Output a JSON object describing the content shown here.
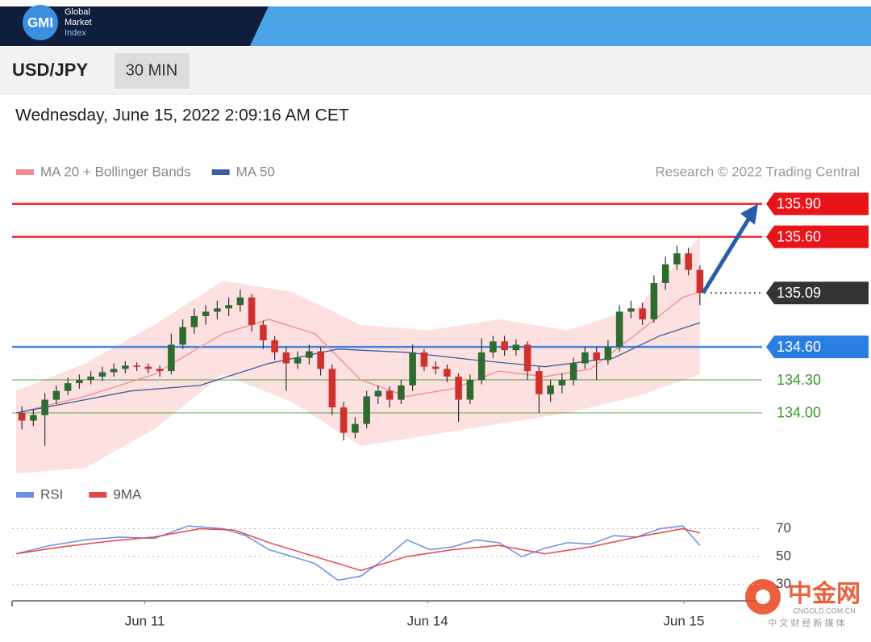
{
  "header": {
    "logo": "GMI",
    "brand": [
      "Global",
      "Market",
      "Index"
    ],
    "symbol": "USD/JPY",
    "timeframe": "30 MIN",
    "timestamp": "Wednesday, June 15, 2022 2:09:16 AM CET",
    "credit": "Research © 2022 Trading Central"
  },
  "watermark": {
    "name": "中金网",
    "site": "CNGOLD.COM.CN",
    "slogan": "中 文 财 经 新 媒 体"
  },
  "chart_data": [
    {
      "type": "candlestick",
      "legend": [
        {
          "name": "MA 20 + Bollinger Bands",
          "color": "#f28b8b"
        },
        {
          "name": "MA 50",
          "color": "#3a5fa0"
        }
      ],
      "xlim": [
        0,
        60
      ],
      "xticks": [
        {
          "value": 11.2,
          "label": "Jun 11"
        },
        {
          "value": 35.8,
          "label": "Jun 14"
        },
        {
          "value": 58.1,
          "label": "Jun 15"
        }
      ],
      "ylim": [
        133.45,
        136.03
      ],
      "up_color": "#2e6b2e",
      "down_color": "#d0312d",
      "open": [
        134.0,
        133.93,
        133.98,
        134.12,
        134.2,
        134.27,
        134.3,
        134.33,
        134.37,
        134.4,
        134.43,
        134.42,
        134.4,
        134.38,
        134.62,
        134.78,
        134.88,
        134.92,
        134.95,
        134.98,
        135.05,
        134.8,
        134.66,
        134.55,
        134.45,
        134.5,
        134.56,
        134.4,
        134.05,
        133.82,
        133.9,
        134.15,
        134.2,
        134.12,
        134.25,
        134.55,
        134.42,
        134.4,
        134.33,
        134.12,
        134.3,
        134.55,
        134.65,
        134.57,
        134.62,
        134.38,
        134.17,
        134.25,
        134.3,
        134.45,
        134.55,
        134.48,
        134.6,
        134.92,
        134.95,
        134.85,
        135.18,
        135.35,
        135.45,
        135.3
      ],
      "high": [
        134.06,
        134.03,
        134.18,
        134.25,
        134.32,
        134.35,
        134.38,
        134.42,
        134.45,
        134.47,
        134.46,
        134.45,
        134.43,
        134.72,
        134.85,
        134.95,
        134.98,
        135.02,
        135.05,
        135.12,
        135.08,
        134.84,
        134.7,
        134.6,
        134.56,
        134.62,
        134.6,
        134.44,
        134.1,
        133.96,
        134.2,
        134.25,
        134.24,
        134.3,
        134.62,
        134.58,
        134.47,
        134.44,
        134.36,
        134.35,
        134.68,
        134.7,
        134.7,
        134.67,
        134.65,
        134.42,
        134.3,
        134.36,
        134.5,
        134.6,
        134.6,
        134.66,
        134.98,
        135.02,
        135.0,
        135.25,
        135.42,
        135.52,
        135.5,
        135.34
      ],
      "low": [
        133.85,
        133.88,
        133.7,
        134.08,
        134.16,
        134.22,
        134.26,
        134.29,
        134.33,
        134.36,
        134.38,
        134.36,
        134.33,
        134.35,
        134.58,
        134.72,
        134.8,
        134.85,
        134.88,
        134.92,
        134.74,
        134.58,
        134.48,
        134.2,
        134.4,
        134.44,
        134.34,
        133.98,
        133.75,
        133.77,
        133.86,
        134.08,
        134.05,
        134.08,
        134.2,
        134.38,
        134.35,
        134.28,
        133.92,
        134.08,
        134.26,
        134.5,
        134.52,
        134.52,
        134.3,
        134.0,
        134.1,
        134.18,
        134.25,
        134.4,
        134.3,
        134.44,
        134.56,
        134.86,
        134.8,
        134.82,
        135.12,
        135.3,
        135.25,
        134.98
      ],
      "close": [
        133.93,
        133.98,
        134.12,
        134.2,
        134.27,
        134.3,
        134.33,
        134.37,
        134.4,
        134.43,
        134.42,
        134.4,
        134.38,
        134.62,
        134.78,
        134.88,
        134.92,
        134.95,
        134.98,
        135.05,
        134.8,
        134.66,
        134.55,
        134.45,
        134.5,
        134.56,
        134.4,
        134.05,
        133.82,
        133.9,
        134.15,
        134.2,
        134.12,
        134.25,
        134.55,
        134.42,
        134.4,
        134.33,
        134.12,
        134.3,
        134.55,
        134.65,
        134.57,
        134.62,
        134.38,
        134.17,
        134.25,
        134.3,
        134.45,
        134.55,
        134.48,
        134.6,
        134.92,
        134.95,
        134.85,
        135.18,
        135.35,
        135.45,
        135.3,
        135.09
      ],
      "bands": {
        "color": "#fde0e0",
        "x": [
          0,
          6,
          12,
          18,
          24,
          30,
          36,
          42,
          48,
          54,
          59.5
        ],
        "upper": [
          134.2,
          134.45,
          134.8,
          135.2,
          135.1,
          134.8,
          134.75,
          134.85,
          134.75,
          134.95,
          135.6
        ],
        "lower": [
          133.45,
          133.5,
          133.85,
          134.35,
          134.1,
          133.7,
          133.8,
          133.9,
          134.0,
          134.15,
          134.35
        ]
      },
      "lines": [
        {
          "color": "#f28b8b",
          "x": [
            0,
            6,
            12,
            18,
            22,
            26,
            30,
            34,
            38,
            42,
            46,
            50,
            54,
            58,
            59.5
          ],
          "values": [
            134.0,
            134.15,
            134.35,
            134.72,
            134.85,
            134.72,
            134.3,
            134.15,
            134.22,
            134.38,
            134.33,
            134.4,
            134.72,
            135.05,
            135.1
          ]
        },
        {
          "color": "#3a5fa0",
          "x": [
            0,
            10,
            16,
            22,
            28,
            34,
            40,
            46,
            52,
            56,
            59.5
          ],
          "values": [
            134.0,
            134.2,
            134.25,
            134.45,
            134.58,
            134.55,
            134.48,
            134.42,
            134.5,
            134.7,
            134.82
          ]
        }
      ],
      "levels": [
        {
          "value": 135.9,
          "label": "135.90",
          "color": "#e8141a",
          "style": "box",
          "line": "solid"
        },
        {
          "value": 135.6,
          "label": "135.60",
          "color": "#e8141a",
          "style": "box",
          "line": "solid"
        },
        {
          "value": 135.09,
          "label": "135.09",
          "color": "#333333",
          "style": "box",
          "line": "dotted"
        },
        {
          "value": 134.6,
          "label": "134.60",
          "color": "#2a7de1",
          "style": "box",
          "line": "solid"
        },
        {
          "value": 134.3,
          "label": "134.30",
          "color": "#3a9a2a",
          "style": "text",
          "line": "solid"
        },
        {
          "value": 134.0,
          "label": "134.00",
          "color": "#3a9a2a",
          "style": "text",
          "line": "solid"
        }
      ],
      "arrow_color": "#2a5ea8"
    },
    {
      "type": "line",
      "xlim": [
        0,
        60
      ],
      "ylim": [
        24,
        79
      ],
      "yticks": [
        30,
        50,
        70
      ],
      "grid": true,
      "series": [
        {
          "name": "RSI",
          "color": "#6a8fe0",
          "x": [
            0,
            3,
            6,
            9,
            12,
            15,
            18,
            20,
            22,
            24,
            26,
            28,
            30,
            32,
            34,
            36,
            38,
            40,
            42,
            44,
            46,
            48,
            50,
            52,
            54,
            56,
            58,
            59.5
          ],
          "values": [
            52,
            58,
            62,
            64,
            63,
            72,
            70,
            65,
            55,
            50,
            45,
            33,
            36,
            48,
            62,
            55,
            57,
            62,
            60,
            50,
            56,
            60,
            59,
            65,
            64,
            70,
            72,
            58
          ]
        },
        {
          "name": "9MA",
          "color": "#e8434a",
          "x": [
            0,
            4,
            8,
            12,
            16,
            19,
            22,
            26,
            30,
            34,
            38,
            42,
            46,
            50,
            54,
            58,
            59.5
          ],
          "values": [
            52,
            57,
            61,
            64,
            70,
            69,
            60,
            50,
            40,
            50,
            55,
            58,
            52,
            57,
            64,
            70,
            67
          ]
        }
      ]
    }
  ]
}
